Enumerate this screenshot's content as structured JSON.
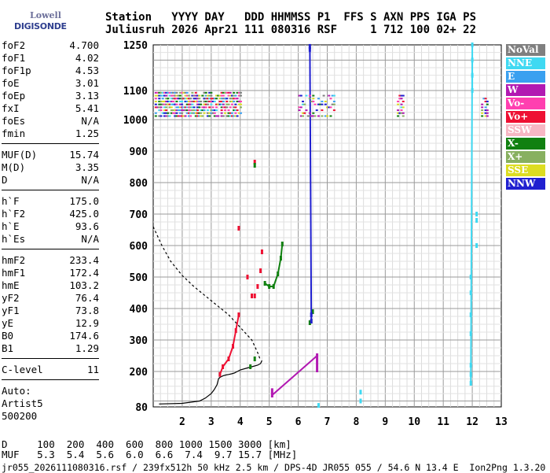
{
  "header": {
    "line1": "Station   YYYY DAY   DDD HHMMSS P1  FFS S AXN PPS IGA PS",
    "line2": "Juliusruh 2026 Apr21 111 080316 RSF     1 712 100 02+ 22"
  },
  "logo": {
    "brand": "Lowell",
    "product": "DIGISONDE"
  },
  "params": {
    "group1": [
      {
        "label": "foF2",
        "value": "4.700"
      },
      {
        "label": "foF1",
        "value": "4.02"
      },
      {
        "label": "foF1p",
        "value": "4.53"
      },
      {
        "label": "foE",
        "value": "3.01"
      },
      {
        "label": "foEp",
        "value": "3.13"
      },
      {
        "label": "fxI",
        "value": "5.41"
      },
      {
        "label": "foEs",
        "value": "N/A"
      },
      {
        "label": "fmin",
        "value": "1.25"
      }
    ],
    "group2": [
      {
        "label": "MUF(D)",
        "value": "15.74"
      },
      {
        "label": "M(D)",
        "value": "3.35"
      },
      {
        "label": "D",
        "value": "N/A"
      }
    ],
    "group3": [
      {
        "label": "h`F",
        "value": "175.0"
      },
      {
        "label": "h`F2",
        "value": "425.0"
      },
      {
        "label": "h`E",
        "value": "93.6"
      },
      {
        "label": "h`Es",
        "value": "N/A"
      }
    ],
    "group4": [
      {
        "label": "hmF2",
        "value": "233.4"
      },
      {
        "label": "hmF1",
        "value": "172.4"
      },
      {
        "label": "hmE",
        "value": "103.2"
      },
      {
        "label": "yF2",
        "value": "76.4"
      },
      {
        "label": "yF1",
        "value": "73.8"
      },
      {
        "label": "yE",
        "value": "12.9"
      },
      {
        "label": "B0",
        "value": "174.6"
      },
      {
        "label": "B1",
        "value": "1.29"
      }
    ],
    "group5": [
      {
        "label": "C-level",
        "value": "11"
      }
    ],
    "auto_lines": [
      "Auto:",
      "Artist5",
      "500200"
    ]
  },
  "legend": [
    {
      "label": "NoVal",
      "color": "#7f7f7f"
    },
    {
      "label": "NNE",
      "color": "#3fd9f2"
    },
    {
      "label": "E",
      "color": "#3aa0f0"
    },
    {
      "label": "W",
      "color": "#b21ab2"
    },
    {
      "label": "Vo-",
      "color": "#ff3fb0"
    },
    {
      "label": "Vo+",
      "color": "#ee1133"
    },
    {
      "label": "SSW",
      "color": "#f7b7c4"
    },
    {
      "label": "X-",
      "color": "#108010"
    },
    {
      "label": "X+",
      "color": "#88b060"
    },
    {
      "label": "SSE",
      "color": "#dddd22"
    },
    {
      "label": "NNW",
      "color": "#2020d0"
    }
  ],
  "footer": {
    "line1": "D     100  200  400  600  800 1000 1500 3000 [km]",
    "line2": "MUF   5.3  5.4  5.6  6.0  6.6  7.4  9.7 15.7 [MHz]",
    "line3": "jr055_2026111080316.rsf / 239fx512h 50 kHz 2.5 km / DPS-4D JR055 055 / 54.6 N 13.4 E  Ion2Png 1.3.20"
  },
  "chart_data": {
    "type": "scatter",
    "title": "",
    "xlabel": "",
    "ylabel": "",
    "xlim": [
      1,
      13
    ],
    "ylim": [
      80,
      1250
    ],
    "x_ticks": [
      "2",
      "3",
      "4",
      "5",
      "6",
      "7",
      "8",
      "9",
      "10",
      "11",
      "12",
      "13"
    ],
    "y_ticks": [
      "80",
      "200",
      "300",
      "400",
      "500",
      "600",
      "700",
      "800",
      "900",
      "1000",
      "1100",
      "1250"
    ],
    "grid": true,
    "legend_position": "right",
    "series": [
      {
        "name": "Vo+",
        "color": "#ee1133",
        "points": [
          [
            3.3,
            190
          ],
          [
            3.4,
            215
          ],
          [
            3.6,
            240
          ],
          [
            3.75,
            280
          ],
          [
            3.85,
            330
          ],
          [
            3.95,
            380
          ],
          [
            4.25,
            500
          ],
          [
            4.4,
            440
          ],
          [
            4.5,
            440
          ],
          [
            4.6,
            470
          ],
          [
            4.7,
            520
          ],
          [
            4.75,
            580
          ],
          [
            3.95,
            655
          ],
          [
            4.5,
            865
          ]
        ]
      },
      {
        "name": "X-",
        "color": "#108010",
        "points": [
          [
            4.85,
            480
          ],
          [
            5.0,
            470
          ],
          [
            5.15,
            470
          ],
          [
            5.3,
            510
          ],
          [
            5.4,
            560
          ],
          [
            5.45,
            605
          ],
          [
            4.35,
            215
          ],
          [
            4.5,
            240
          ],
          [
            6.5,
            390
          ],
          [
            6.4,
            355
          ],
          [
            4.5,
            855
          ]
        ]
      },
      {
        "name": "W",
        "color": "#b21ab2",
        "points": [
          [
            6.65,
            205
          ],
          [
            6.65,
            220
          ],
          [
            6.65,
            235
          ],
          [
            6.65,
            250
          ],
          [
            5.1,
            120
          ],
          [
            5.1,
            135
          ]
        ]
      },
      {
        "name": "NNE",
        "color": "#3fd9f2",
        "points": [
          [
            12.0,
            1100
          ],
          [
            12.0,
            1150
          ],
          [
            12.0,
            1200
          ],
          [
            12.0,
            1250
          ],
          [
            11.95,
            160
          ],
          [
            11.95,
            190
          ],
          [
            11.95,
            220
          ],
          [
            11.95,
            320
          ],
          [
            11.95,
            380
          ],
          [
            11.95,
            450
          ],
          [
            11.95,
            500
          ],
          [
            12.15,
            600
          ],
          [
            12.15,
            680
          ],
          [
            12.15,
            700
          ],
          [
            8.15,
            100
          ],
          [
            8.15,
            130
          ],
          [
            6.7,
            85
          ]
        ]
      },
      {
        "name": "NNW",
        "color": "#2020d0",
        "points": [
          [
            6.4,
            1245
          ],
          [
            6.4,
            1235
          ],
          [
            6.45,
            360
          ],
          [
            6.45,
            380
          ]
        ]
      }
    ],
    "traces": [
      {
        "name": "virtual-height-profile",
        "style": "solid",
        "x": [
          1.2,
          2.0,
          2.6,
          2.8,
          3.0,
          3.1,
          3.2,
          3.25,
          3.3,
          3.4,
          3.5,
          3.6,
          3.7,
          3.8,
          3.9,
          4.0,
          4.2,
          4.4,
          4.6,
          4.7,
          4.75
        ],
        "y": [
          90,
          92,
          100,
          110,
          125,
          138,
          155,
          175,
          180,
          185,
          188,
          190,
          192,
          195,
          200,
          205,
          210,
          215,
          220,
          225,
          235
        ]
      },
      {
        "name": "true-height-profile",
        "style": "dashed",
        "x": [
          1.0,
          1.3,
          1.6,
          2.0,
          2.4,
          2.8,
          3.2,
          3.6,
          3.9,
          4.2,
          4.4,
          4.5,
          4.6,
          4.7
        ],
        "y": [
          660,
          600,
          550,
          505,
          470,
          440,
          410,
          380,
          350,
          320,
          300,
          280,
          260,
          235
        ]
      }
    ]
  }
}
